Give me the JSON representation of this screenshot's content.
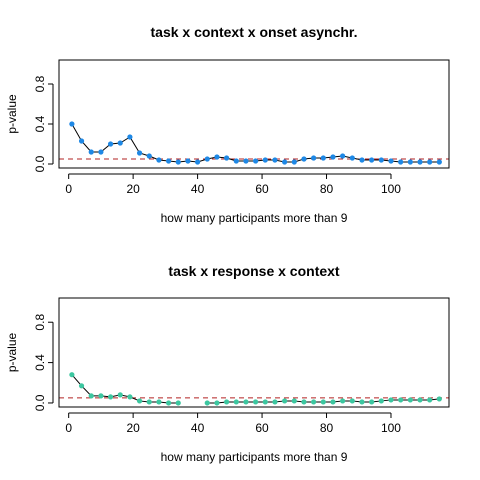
{
  "chart_data": [
    {
      "type": "line",
      "title": "task x context x onset asynchr.",
      "xlabel": "how many participants more than 9",
      "ylabel": "p-value",
      "xlim": [
        -3,
        118
      ],
      "ylim": [
        -0.04,
        1.04
      ],
      "xticks": [
        0,
        20,
        40,
        60,
        80,
        100
      ],
      "yticks": [
        0.0,
        0.4,
        0.8
      ],
      "yticklabels": [
        "0.0",
        "0.4",
        "0.8"
      ],
      "point_color": "#1E88E5",
      "reference_line": {
        "y": 0.05,
        "color": "#B22222",
        "style": "dashed"
      },
      "series": [
        {
          "x": [
            1,
            4,
            7,
            10,
            13,
            16,
            19,
            22,
            25,
            28,
            31,
            34,
            37,
            40,
            43,
            46,
            49,
            52,
            55,
            58,
            61,
            64,
            67,
            70,
            73,
            76,
            79,
            82,
            85,
            88,
            91,
            94,
            97,
            100,
            103,
            106,
            109,
            112,
            115
          ],
          "y": [
            0.4,
            0.23,
            0.12,
            0.12,
            0.2,
            0.21,
            0.27,
            0.11,
            0.08,
            0.04,
            0.03,
            0.02,
            0.03,
            0.02,
            0.05,
            0.07,
            0.06,
            0.03,
            0.03,
            0.03,
            0.04,
            0.04,
            0.02,
            0.02,
            0.05,
            0.06,
            0.06,
            0.07,
            0.08,
            0.06,
            0.04,
            0.04,
            0.04,
            0.03,
            0.02,
            0.02,
            0.02,
            0.02,
            0.02
          ]
        }
      ]
    },
    {
      "type": "line",
      "title": "task x response x context",
      "xlabel": "how many participants more than 9",
      "ylabel": "p-value",
      "xlim": [
        -3,
        118
      ],
      "ylim": [
        -0.04,
        1.04
      ],
      "xticks": [
        0,
        20,
        40,
        60,
        80,
        100
      ],
      "yticks": [
        0.0,
        0.4,
        0.8
      ],
      "yticklabels": [
        "0.0",
        "0.4",
        "0.8"
      ],
      "point_color": "#3CC7A0",
      "reference_line": {
        "y": 0.05,
        "color": "#B22222",
        "style": "dashed"
      },
      "series": [
        {
          "x": [
            1,
            4,
            7,
            10,
            13,
            16,
            19,
            22,
            25,
            28,
            31,
            34,
            37,
            40,
            43,
            46,
            49,
            52,
            55,
            58,
            61,
            64,
            67,
            70,
            73,
            76,
            79,
            82,
            85,
            88,
            91,
            94,
            97,
            100,
            103,
            106,
            109,
            112,
            115
          ],
          "y": [
            0.28,
            0.17,
            0.07,
            0.07,
            0.06,
            0.08,
            0.06,
            0.02,
            0.01,
            0.01,
            0.0,
            0.0,
            null,
            null,
            0.0,
            0.0,
            0.01,
            0.01,
            0.01,
            0.01,
            0.01,
            0.01,
            0.02,
            0.02,
            0.01,
            0.01,
            0.01,
            0.01,
            0.02,
            0.02,
            0.01,
            0.01,
            0.02,
            0.03,
            0.03,
            0.03,
            0.03,
            0.03,
            0.04
          ]
        }
      ]
    }
  ]
}
